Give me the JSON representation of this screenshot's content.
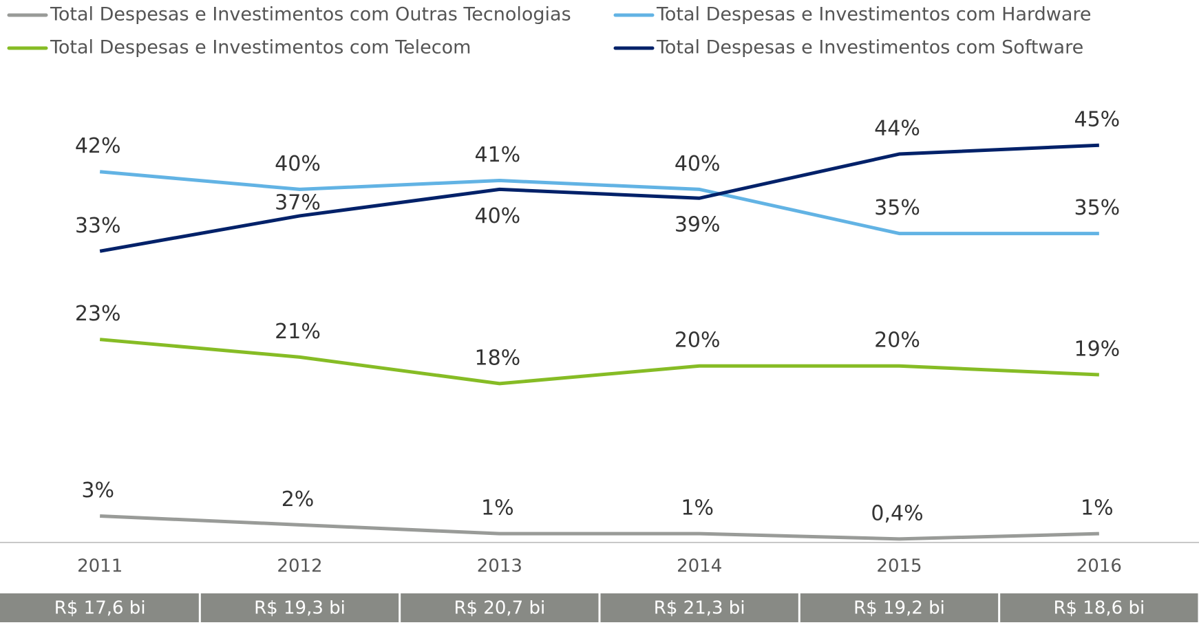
{
  "chart_data": {
    "type": "line",
    "categories": [
      "2011",
      "2012",
      "2013",
      "2014",
      "2015",
      "2016"
    ],
    "series": [
      {
        "name": "Total Despesas e Investimentos com Outras Tecnologias",
        "color": "#999b98",
        "values": [
          3,
          2,
          1,
          1,
          0.4,
          1
        ],
        "value_labels": [
          "3%",
          "2%",
          "1%",
          "1%",
          "0,4%",
          "1%"
        ]
      },
      {
        "name": "Total Despesas e Investimentos com Hardware",
        "color": "#62b3e4",
        "values": [
          42,
          40,
          41,
          40,
          35,
          35
        ],
        "value_labels": [
          "42%",
          "40%",
          "41%",
          "40%",
          "35%",
          "35%"
        ]
      },
      {
        "name": "Total Despesas e Investimentos com Telecom",
        "color": "#86bc25",
        "values": [
          23,
          21,
          18,
          20,
          20,
          19
        ],
        "value_labels": [
          "23%",
          "21%",
          "18%",
          "20%",
          "20%",
          "19%"
        ]
      },
      {
        "name": "Total Despesas e Investimentos com Software",
        "color": "#012169",
        "values": [
          33,
          37,
          40,
          39,
          44,
          45
        ],
        "value_labels": [
          "33%",
          "37%",
          "40%",
          "39%",
          "44%",
          "45%"
        ]
      }
    ],
    "totals": [
      "R$ 17,6 bi",
      "R$ 19,3 bi",
      "R$ 20,7 bi",
      "R$ 21,3 bi",
      "R$ 19,2 bi",
      "R$ 18,6 bi"
    ],
    "ylim": [
      0,
      50
    ]
  }
}
